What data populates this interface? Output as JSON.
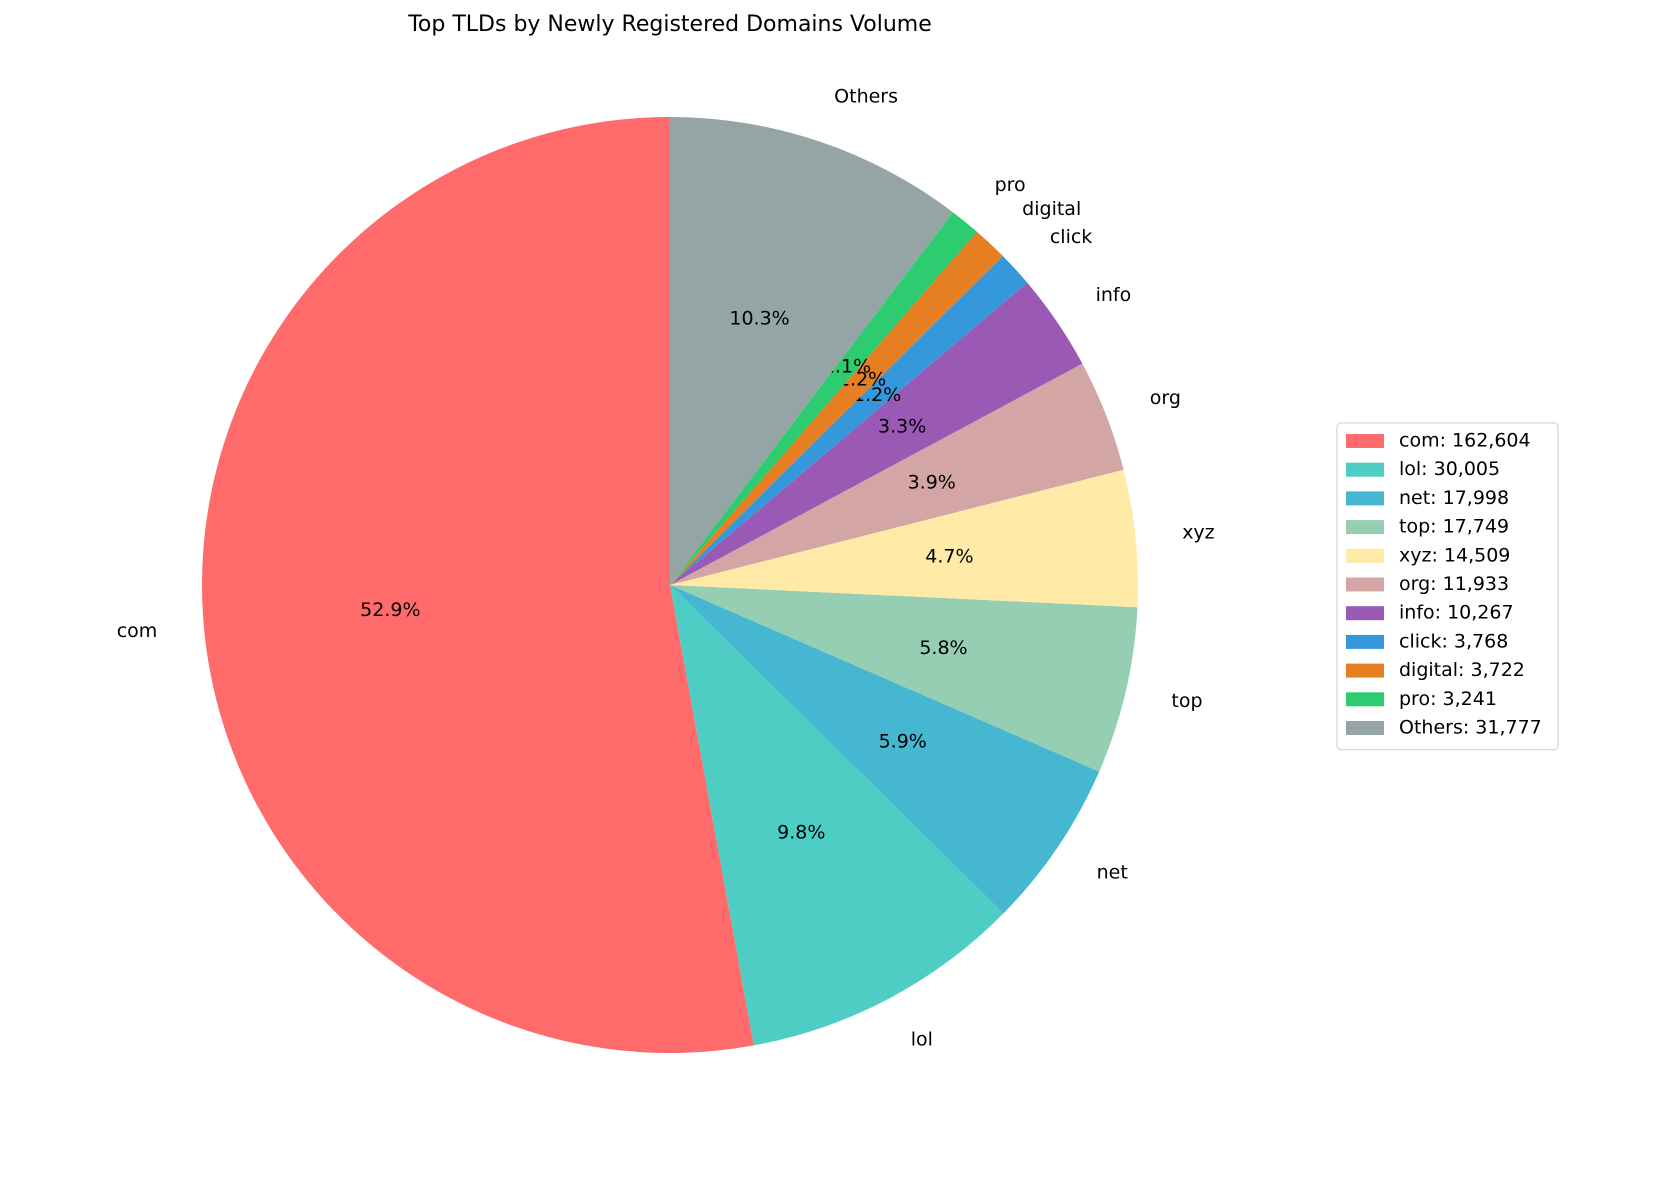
{
  "chart_data": {
    "type": "pie",
    "title": "Top TLDs by Newly Registered Domains Volume",
    "categories": [
      "com",
      "lol",
      "net",
      "top",
      "xyz",
      "org",
      "info",
      "click",
      "digital",
      "pro",
      "Others"
    ],
    "values": [
      162604,
      30005,
      17998,
      17749,
      14509,
      11933,
      10267,
      3768,
      3722,
      3241,
      31777
    ],
    "percent_labels": [
      "52.9%",
      "9.8%",
      "5.9%",
      "5.8%",
      "4.7%",
      "3.9%",
      "3.3%",
      "1.2%",
      "1.2%",
      "1.1%",
      "10.3%"
    ],
    "legend_labels": [
      "com: 162,604",
      "lol: 30,005",
      "net: 17,998",
      "top: 17,749",
      "xyz: 14,509",
      "org: 11,933",
      "info: 10,267",
      "click: 3,768",
      "digital: 3,722",
      "pro: 3,241",
      "Others: 31,777"
    ],
    "colors": [
      "#ff6b6b",
      "#4ecdc4",
      "#45b7d1",
      "#96ceb4",
      "#ffeaa7",
      "#d4a5a5",
      "#9b59b6",
      "#3498db",
      "#e67e22",
      "#2ecc71",
      "#95a5a6"
    ],
    "start_angle": 90,
    "counterclockwise": true,
    "legend": "right"
  }
}
